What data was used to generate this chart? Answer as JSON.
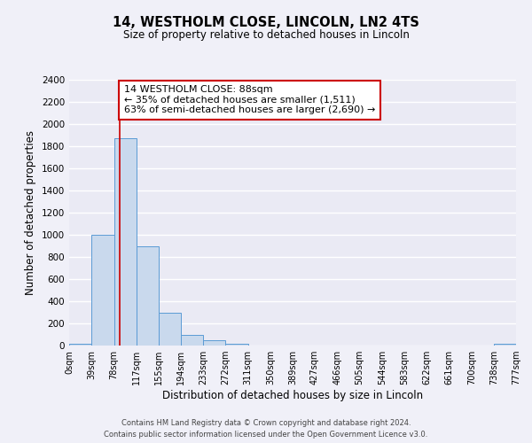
{
  "title": "14, WESTHOLM CLOSE, LINCOLN, LN2 4TS",
  "subtitle": "Size of property relative to detached houses in Lincoln",
  "xlabel": "Distribution of detached houses by size in Lincoln",
  "ylabel": "Number of detached properties",
  "bin_edges": [
    0,
    39,
    78,
    117,
    155,
    194,
    233,
    272,
    311,
    350,
    389,
    427,
    466,
    505,
    544,
    583,
    622,
    661,
    700,
    738,
    777
  ],
  "bin_labels": [
    "0sqm",
    "39sqm",
    "78sqm",
    "117sqm",
    "155sqm",
    "194sqm",
    "233sqm",
    "272sqm",
    "311sqm",
    "350sqm",
    "389sqm",
    "427sqm",
    "466sqm",
    "505sqm",
    "544sqm",
    "583sqm",
    "622sqm",
    "661sqm",
    "700sqm",
    "738sqm",
    "777sqm"
  ],
  "bar_heights": [
    20,
    1000,
    1870,
    900,
    300,
    100,
    45,
    20,
    0,
    0,
    0,
    0,
    0,
    0,
    0,
    0,
    0,
    0,
    0,
    20
  ],
  "bar_color": "#c9d9ed",
  "bar_edge_color": "#5b9bd5",
  "vline_x": 88,
  "vline_color": "#cc0000",
  "ylim": [
    0,
    2400
  ],
  "yticks": [
    0,
    200,
    400,
    600,
    800,
    1000,
    1200,
    1400,
    1600,
    1800,
    2000,
    2200,
    2400
  ],
  "annotation_title": "14 WESTHOLM CLOSE: 88sqm",
  "annotation_line1": "← 35% of detached houses are smaller (1,511)",
  "annotation_line2": "63% of semi-detached houses are larger (2,690) →",
  "annotation_box_color": "#ffffff",
  "annotation_box_edge": "#cc0000",
  "fig_bg_color": "#f0f0f8",
  "plot_bg_color": "#eaeaf4",
  "grid_color": "#ffffff",
  "footer1": "Contains HM Land Registry data © Crown copyright and database right 2024.",
  "footer2": "Contains public sector information licensed under the Open Government Licence v3.0."
}
